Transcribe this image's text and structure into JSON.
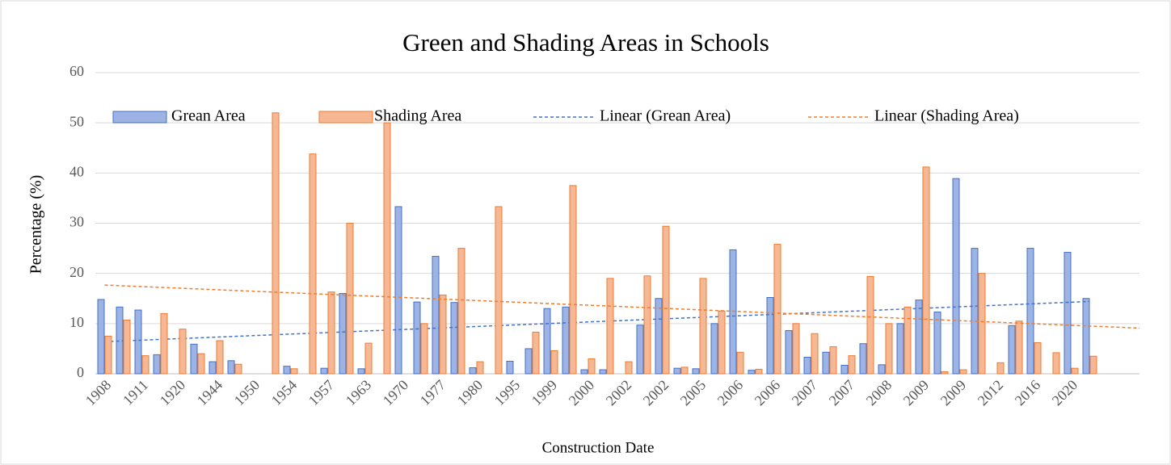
{
  "chart_data": {
    "type": "bar",
    "title": "Green and Shading Areas in Schools",
    "x_label": "Construction Date",
    "y_label": "Percentage (%)",
    "categories": [
      "1908",
      null,
      "1911",
      null,
      "1920",
      null,
      "1944",
      null,
      "1950",
      null,
      "1954",
      null,
      "1957",
      null,
      "1963",
      null,
      "1970",
      null,
      "1977",
      null,
      "1980",
      null,
      "1995",
      null,
      "1999",
      null,
      "2000",
      null,
      "2002",
      null,
      "2002",
      null,
      "2005",
      null,
      "2006",
      null,
      "2006",
      null,
      "2007",
      null,
      "2007",
      null,
      "2008",
      null,
      "2009",
      null,
      "2009",
      null,
      "2012",
      null,
      "2016",
      null,
      "2020",
      null
    ],
    "series": [
      {
        "name": "Grean Area",
        "color": "#4472c4",
        "fill": "#9db3e3",
        "trendline": "Linear (Grean Area)",
        "values": [
          14.8,
          13.3,
          12.7,
          3.8,
          null,
          5.9,
          2.4,
          2.6,
          null,
          null,
          1.5,
          null,
          1.1,
          16,
          1.0,
          null,
          33.3,
          14.3,
          23.4,
          14.2,
          1.2,
          null,
          2.5,
          5.0,
          13,
          13.3,
          0.8,
          0.8,
          null,
          9.7,
          15,
          1.1,
          1.0,
          10,
          24.7,
          0.7,
          15.2,
          8.6,
          3.3,
          4.3,
          1.7,
          6,
          1.8,
          10,
          14.7,
          12.3,
          38.9,
          25,
          null,
          9.6,
          25,
          null,
          24.2,
          15
        ]
      },
      {
        "name": "Shading Area",
        "color": "#ed7d31",
        "fill": "#f6b894",
        "trendline": "Linear (Shading Area)",
        "values": [
          7.5,
          10.7,
          3.6,
          12,
          8.9,
          4.0,
          6.6,
          1.9,
          null,
          52,
          1.0,
          43.8,
          16.3,
          30,
          6.1,
          50,
          null,
          10,
          15.7,
          25,
          2.4,
          33.3,
          null,
          8.3,
          4.6,
          37.5,
          3.0,
          19,
          2.4,
          19.5,
          29.4,
          1.3,
          19,
          12.5,
          4.3,
          0.9,
          25.8,
          10,
          8,
          5.4,
          3.6,
          19.4,
          10,
          13.3,
          41.2,
          0.4,
          0.8,
          20,
          2.2,
          10.5,
          6.2,
          4.2,
          1.1,
          3.5
        ]
      }
    ],
    "ylim": [
      0,
      60
    ],
    "yticks": [
      0,
      10,
      20,
      30,
      40,
      50,
      60
    ],
    "grid": true,
    "legend": "top"
  }
}
